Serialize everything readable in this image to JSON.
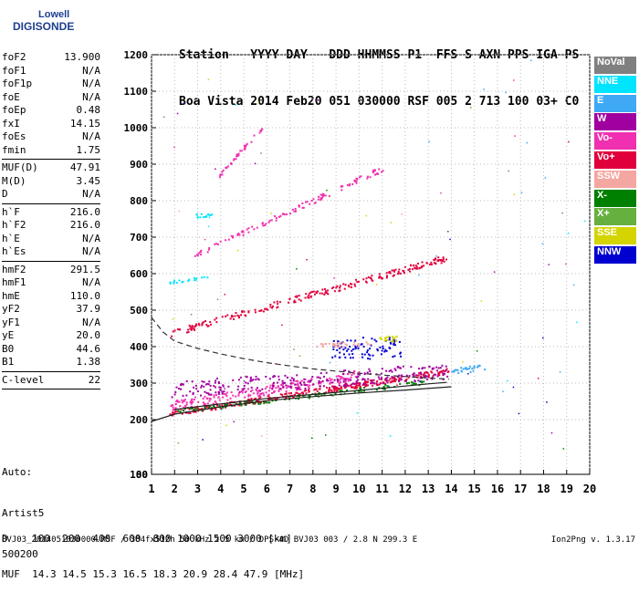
{
  "logo": {
    "line1": "Lowell",
    "line2": "DIGISONDE"
  },
  "header": {
    "row1": "Station   YYYY DAY   DDD HHMMSS P1  FFS S AXN PPS IGA PS",
    "row2": "Boa Vista 2014 Feb20 051 030000 RSF 005 2 713 100 03+ C0"
  },
  "params": [
    {
      "name": "foF2",
      "value": "13.900"
    },
    {
      "name": "foF1",
      "value": "N/A"
    },
    {
      "name": "foF1p",
      "value": "N/A"
    },
    {
      "name": "foE",
      "value": "N/A"
    },
    {
      "name": "foEp",
      "value": "0.48"
    },
    {
      "name": "fxI",
      "value": "14.15"
    },
    {
      "name": "foEs",
      "value": "N/A"
    },
    {
      "name": "fmin",
      "value": "1.75"
    },
    {
      "name": "MUF(D)",
      "value": "47.91",
      "sep_before": true
    },
    {
      "name": "M(D)",
      "value": "3.45"
    },
    {
      "name": "D",
      "value": "N/A"
    },
    {
      "name": "h`F",
      "value": "216.0",
      "sep_before": true
    },
    {
      "name": "h`F2",
      "value": "216.0"
    },
    {
      "name": "h`E",
      "value": "N/A"
    },
    {
      "name": "h`Es",
      "value": "N/A"
    },
    {
      "name": "hmF2",
      "value": "291.5",
      "sep_before": true
    },
    {
      "name": "hmF1",
      "value": "N/A"
    },
    {
      "name": "hmE",
      "value": "110.0"
    },
    {
      "name": "yF2",
      "value": "37.9"
    },
    {
      "name": "yF1",
      "value": "N/A"
    },
    {
      "name": "yE",
      "value": "20.0"
    },
    {
      "name": "B0",
      "value": "44.6"
    },
    {
      "name": "B1",
      "value": "1.38"
    },
    {
      "name": "C-level",
      "value": "22",
      "sep_before": true,
      "sep_after": true
    }
  ],
  "artist": {
    "line1": "Auto:",
    "line2": "Artist5",
    "line3": "500200"
  },
  "bottom": {
    "d_row": "D    100  200  400  600  800 1000 1500 3000 [km]",
    "muf_row": "MUF  14.3 14.5 15.3 16.5 18.3 20.9 28.4 47.9 [MHz]"
  },
  "footer": "BVJ03_2014051030000.RSF / 384fx512h 50 kHz 2.5 km / DPS-4D BVJ03 003 / 2.8 N 299.3 E",
  "version": "Ion2Png v. 1.3.17",
  "legend": [
    {
      "label": "NoVal",
      "color": "#808080"
    },
    {
      "label": "NNE",
      "color": "#00e5ff"
    },
    {
      "label": "E",
      "color": "#3fa9f5"
    },
    {
      "label": "W",
      "color": "#a000a0"
    },
    {
      "label": "Vo-",
      "color": "#f030b0"
    },
    {
      "label": "Vo+",
      "color": "#e0003c"
    },
    {
      "label": "SSW",
      "color": "#f4a6a0"
    },
    {
      "label": "X-",
      "color": "#008000"
    },
    {
      "label": "X+",
      "color": "#66b040"
    },
    {
      "label": "SSE",
      "color": "#d4d400"
    },
    {
      "label": "NNW",
      "color": "#0000d0"
    }
  ],
  "chart_data": {
    "type": "scatter",
    "xlim": [
      1,
      20
    ],
    "ylim": [
      80,
      1200
    ],
    "x_ticks": [
      1,
      2,
      3,
      4,
      5,
      6,
      7,
      8,
      9,
      10,
      11,
      12,
      13,
      14,
      15,
      16,
      17,
      18,
      19,
      20
    ],
    "y_ticks": [
      80,
      100,
      200,
      300,
      400,
      500,
      600,
      700,
      800,
      900,
      1000,
      1100,
      1200
    ],
    "grid": true,
    "traces": [
      {
        "name": "Vo+",
        "color": "#e0003c",
        "x0": 1.7,
        "x1": 13.9,
        "y0": 218,
        "y1": 335,
        "spread": 8,
        "n": 320
      },
      {
        "name": "Vo-",
        "color": "#f030b0",
        "x0": 1.8,
        "x1": 10,
        "y0": 240,
        "y1": 325,
        "spread": 14,
        "n": 220
      },
      {
        "name": "W",
        "color": "#a000a0",
        "x0": 1.8,
        "x1": 13.8,
        "y0": 285,
        "y1": 335,
        "spread": 22,
        "n": 260
      },
      {
        "name": "X-",
        "color": "#008000",
        "x0": 2,
        "x1": 13,
        "y0": 225,
        "y1": 305,
        "spread": 6,
        "n": 120
      },
      {
        "name": "NNW",
        "color": "#0000d0",
        "x0": 8.8,
        "x1": 11.8,
        "y0": 395,
        "y1": 400,
        "spread": 30,
        "n": 90
      },
      {
        "name": "SSE",
        "color": "#d4d400",
        "x0": 10.8,
        "x1": 11.6,
        "y0": 420,
        "y1": 425,
        "spread": 8,
        "n": 20
      },
      {
        "name": "E",
        "color": "#3fa9f5",
        "x0": 14,
        "x1": 15.5,
        "y0": 335,
        "y1": 345,
        "spread": 8,
        "n": 30
      },
      {
        "name": "Vo+",
        "color": "#e0003c",
        "x0": 1.8,
        "x1": 13.8,
        "y0": 438,
        "y1": 645,
        "spread": 9,
        "n": 220
      },
      {
        "name": "Vo-",
        "color": "#f030b0",
        "x0": 2.8,
        "x1": 11,
        "y0": 650,
        "y1": 890,
        "spread": 8,
        "n": 120
      },
      {
        "name": "Vo-",
        "color": "#f030b0",
        "x0": 3.9,
        "x1": 5.8,
        "y0": 870,
        "y1": 1005,
        "spread": 6,
        "n": 40
      },
      {
        "name": "NNE",
        "color": "#00e5ff",
        "x0": 1.6,
        "x1": 3.5,
        "y0": 575,
        "y1": 590,
        "spread": 6,
        "n": 20
      },
      {
        "name": "NNE",
        "color": "#00e5ff",
        "x0": 2.8,
        "x1": 3.6,
        "y0": 760,
        "y1": 765,
        "spread": 6,
        "n": 14
      },
      {
        "name": "SSW",
        "color": "#f4a6a0",
        "x0": 7.5,
        "x1": 10.5,
        "y0": 405,
        "y1": 410,
        "spread": 6,
        "n": 30
      }
    ],
    "curves": [
      {
        "style": "solid",
        "points": [
          [
            1,
            195
          ],
          [
            2,
            215
          ],
          [
            4,
            235
          ],
          [
            6,
            252
          ],
          [
            8,
            263
          ],
          [
            10,
            273
          ],
          [
            12,
            281
          ],
          [
            14,
            290
          ]
        ]
      },
      {
        "style": "solid",
        "points": [
          [
            2,
            228
          ],
          [
            6,
            258
          ],
          [
            10,
            280
          ],
          [
            13,
            298
          ],
          [
            13.8,
            302
          ]
        ]
      },
      {
        "style": "dashed",
        "points": [
          [
            1,
            480
          ],
          [
            1.5,
            440
          ],
          [
            2,
            415
          ],
          [
            3,
            395
          ],
          [
            4,
            380
          ],
          [
            5,
            367
          ],
          [
            6,
            356
          ],
          [
            7,
            347
          ],
          [
            8,
            339
          ],
          [
            9,
            333
          ],
          [
            10,
            327
          ],
          [
            11,
            322
          ],
          [
            12,
            318
          ],
          [
            13,
            314
          ],
          [
            13.9,
            311
          ]
        ]
      }
    ]
  }
}
